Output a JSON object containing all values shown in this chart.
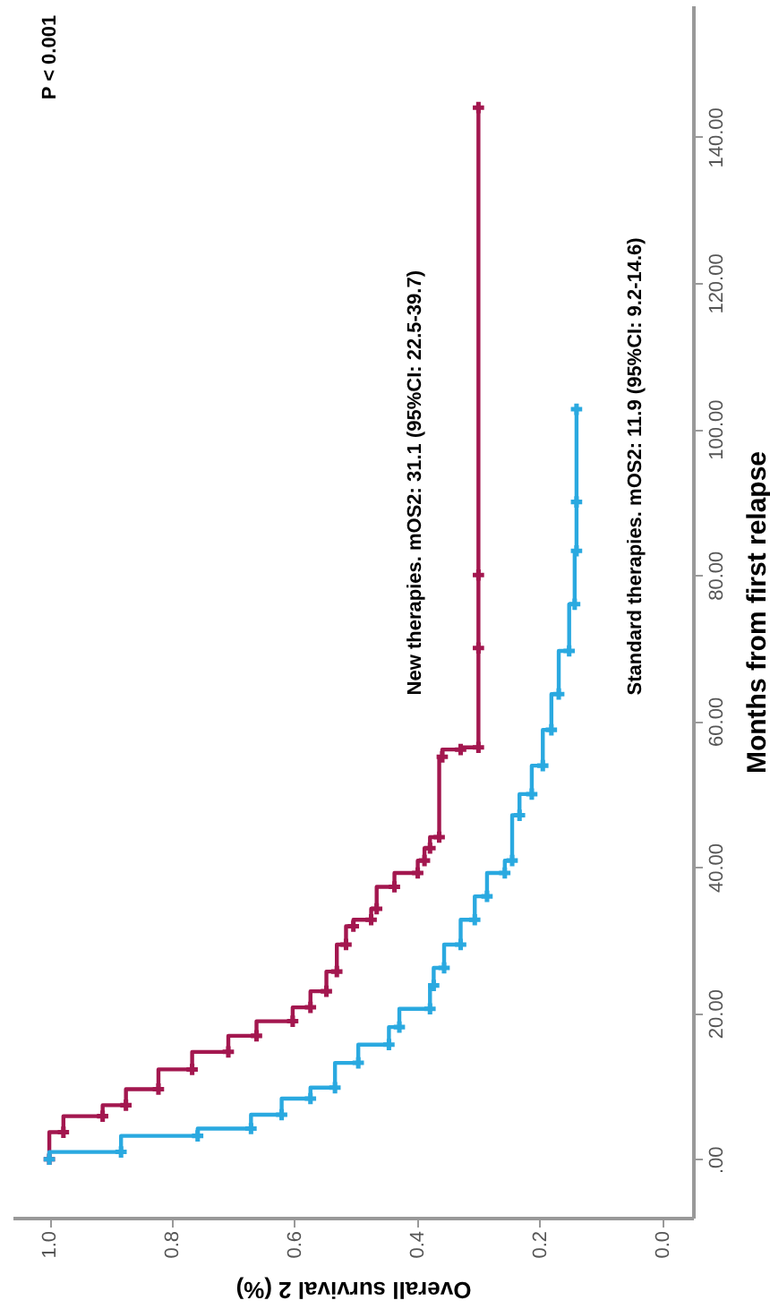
{
  "chart_data": {
    "type": "step",
    "xlabel": "Overall survival 2 (%)",
    "ylabel": "Months from first relapse",
    "xlim": [
      1.06,
      -0.05
    ],
    "ylim": [
      -8,
      158
    ],
    "xticks": [
      {
        "value": 1,
        "label": "1.0"
      },
      {
        "value": 0.8,
        "label": "0.8"
      },
      {
        "value": 0.6,
        "label": "0.6"
      },
      {
        "value": 0.4,
        "label": "0.4"
      },
      {
        "value": 0.2,
        "label": "0.2"
      },
      {
        "value": 0,
        "label": "0.0"
      }
    ],
    "yticks": [
      {
        "value": 0,
        "label": ".00"
      },
      {
        "value": 20,
        "label": "20.00"
      },
      {
        "value": 40,
        "label": "40.00"
      },
      {
        "value": 60,
        "label": "60.00"
      },
      {
        "value": 80,
        "label": "80.00"
      },
      {
        "value": 100,
        "label": "100.00"
      },
      {
        "value": 120,
        "label": "120.00"
      },
      {
        "value": 140,
        "label": "140.00"
      }
    ],
    "grid": false,
    "marker": "cross",
    "line_style": "solid",
    "series": [
      {
        "color": "#a3174f",
        "x": [
          1.0,
          0.977,
          0.913,
          0.875,
          0.822,
          0.767,
          0.708,
          0.662,
          0.603,
          0.574,
          0.548,
          0.531,
          0.516,
          0.504,
          0.475,
          0.466,
          0.437,
          0.399,
          0.388,
          0.379,
          0.364,
          0.359,
          0.329,
          0.3,
          0.3,
          0.3,
          0.3
        ],
        "values": [
          0,
          3.7,
          5.9,
          7.4,
          9.6,
          12.3,
          14.7,
          16.9,
          18.9,
          20.8,
          23.0,
          25.7,
          29.4,
          31.9,
          32.8,
          34.3,
          37.3,
          39.2,
          40.9,
          42.6,
          44.1,
          55.1,
          56.1,
          56.4,
          70,
          80,
          144
        ]
      },
      {
        "color": "#2aa9e0",
        "x": [
          1.0,
          0.883,
          0.758,
          0.671,
          0.621,
          0.574,
          0.534,
          0.496,
          0.446,
          0.429,
          0.379,
          0.373,
          0.356,
          0.329,
          0.306,
          0.286,
          0.257,
          0.245,
          0.233,
          0.213,
          0.195,
          0.181,
          0.169,
          0.152,
          0.143,
          0.14,
          0.14,
          0.14
        ],
        "values": [
          0,
          1.0,
          3.2,
          4.2,
          6.1,
          8.3,
          9.8,
          13.2,
          15.7,
          18.1,
          20.6,
          23.8,
          26.2,
          29.4,
          32.8,
          36.0,
          39.2,
          40.9,
          47.1,
          50.0,
          53.9,
          58.8,
          63.7,
          69.6,
          76.0,
          83.3,
          90,
          102.7
        ]
      }
    ],
    "annotations": [
      "P < 0.001",
      "New therapies. mOS2: 31.1 (95%CI: 22.5-39.7)",
      "Standard therapies. mOS2: 11.9 (95%CI: 9.2-14.6)"
    ]
  }
}
